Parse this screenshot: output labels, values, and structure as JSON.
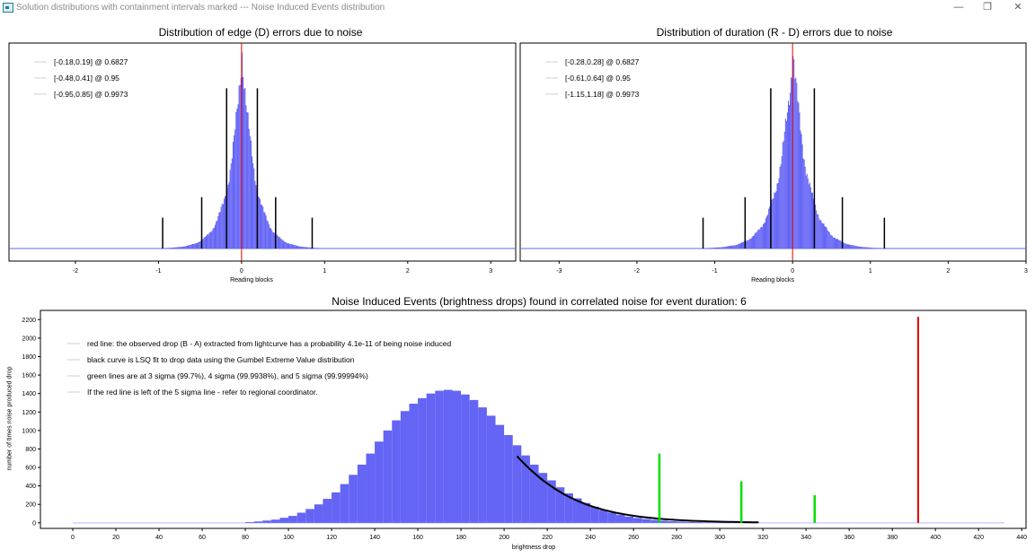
{
  "window": {
    "title": "Solution distributions with containment intervals marked --- Noise Induced Events distribution",
    "minimize": "—",
    "maximize": "❐",
    "close": "✕"
  },
  "colors": {
    "histogram": "#6464f5",
    "center_line": "#e60000",
    "sigma_line": "#00e000",
    "interval_line": "#000000"
  },
  "chart_data": [
    {
      "type": "bar",
      "title": "Distribution of edge (D) errors due to noise",
      "xlabel": "Reading blocks",
      "ylabel": "",
      "xlim": [
        -2.8,
        3.3
      ],
      "xticks": [
        -2,
        -1,
        0,
        1,
        2,
        3
      ],
      "distribution": {
        "center": 0,
        "shape": "peaked",
        "support": [
          -1.0,
          0.9
        ]
      },
      "center_line": 0,
      "intervals": [
        {
          "label": "[-0.18,0.19] @ 0.6827",
          "low": -0.18,
          "high": 0.19,
          "level": 0.6827
        },
        {
          "label": "[-0.48,0.41] @ 0.95",
          "low": -0.48,
          "high": 0.41,
          "level": 0.95
        },
        {
          "label": "[-0.95,0.85] @ 0.9973",
          "low": -0.95,
          "high": 0.85,
          "level": 0.9973
        }
      ],
      "legend_position": "top-left"
    },
    {
      "type": "bar",
      "title": "Distribution of duration (R - D) errors due to noise",
      "xlabel": "Reading blocks",
      "ylabel": "",
      "xlim": [
        -3.5,
        3.0
      ],
      "xticks": [
        -3,
        -2,
        -1,
        0,
        1,
        2,
        3
      ],
      "distribution": {
        "center": 0,
        "shape": "peaked",
        "support": [
          -1.2,
          1.2
        ]
      },
      "center_line": 0,
      "intervals": [
        {
          "label": "[-0.28,0.28] @ 0.6827",
          "low": -0.28,
          "high": 0.28,
          "level": 0.6827
        },
        {
          "label": "[-0.61,0.64] @ 0.95",
          "low": -0.61,
          "high": 0.64,
          "level": 0.95
        },
        {
          "label": "[-1.15,1.18] @ 0.9973",
          "low": -1.15,
          "high": 1.18,
          "level": 0.9973
        }
      ],
      "legend_position": "top-left"
    },
    {
      "type": "bar",
      "title": "Noise Induced Events (brightness drops) found in correlated noise for event duration: 6",
      "xlabel": "brightness drop",
      "ylabel": "number of times noise produced drop",
      "xlim": [
        -15,
        442
      ],
      "ylim": [
        -60,
        2300
      ],
      "xticks": [
        0,
        20,
        40,
        60,
        80,
        100,
        120,
        140,
        160,
        180,
        200,
        220,
        240,
        260,
        280,
        300,
        320,
        340,
        360,
        380,
        400,
        420,
        440
      ],
      "yticks": [
        0,
        200,
        400,
        600,
        800,
        1000,
        1200,
        1400,
        1600,
        1800,
        2000,
        2200
      ],
      "histogram_x": [
        80,
        84,
        88,
        92,
        96,
        100,
        104,
        108,
        112,
        116,
        120,
        124,
        128,
        132,
        136,
        140,
        144,
        148,
        152,
        156,
        160,
        164,
        168,
        172,
        176,
        180,
        184,
        188,
        192,
        196,
        200,
        204,
        208,
        212,
        216,
        220,
        224,
        228,
        232,
        236,
        240,
        244,
        248,
        252,
        256,
        260,
        264,
        268,
        272,
        276,
        280,
        284,
        288,
        292,
        296,
        300,
        304,
        308,
        312
      ],
      "histogram_y": [
        8,
        15,
        25,
        35,
        55,
        75,
        110,
        150,
        200,
        260,
        330,
        420,
        520,
        630,
        750,
        880,
        1000,
        1110,
        1210,
        1290,
        1350,
        1400,
        1430,
        1440,
        1430,
        1390,
        1330,
        1250,
        1160,
        1060,
        950,
        840,
        730,
        630,
        540,
        460,
        385,
        320,
        265,
        215,
        175,
        140,
        112,
        88,
        68,
        53,
        41,
        32,
        24,
        18,
        14,
        10,
        8,
        6,
        4,
        3,
        2,
        2,
        1
      ],
      "fit_curve": "gumbel",
      "observed_drop": {
        "x": 392,
        "height": 2230
      },
      "sigma_lines": [
        {
          "x": 272,
          "height": 750
        },
        {
          "x": 310,
          "height": 450
        },
        {
          "x": 344,
          "height": 300
        }
      ],
      "legend": [
        "red line: the observed drop (B - A) extracted from lightcurve has a probability 4.1e-11 of being noise induced",
        "black curve is LSQ fit to drop data using the Gumbel Extreme Value distribution",
        "green lines are at 3 sigma (99.7%), 4 sigma (99.9938%), and 5 sigma (99.99994%)",
        "If the red line is left of the 5 sigma line - refer to regional coordinator."
      ],
      "legend_position": "top-left"
    }
  ]
}
